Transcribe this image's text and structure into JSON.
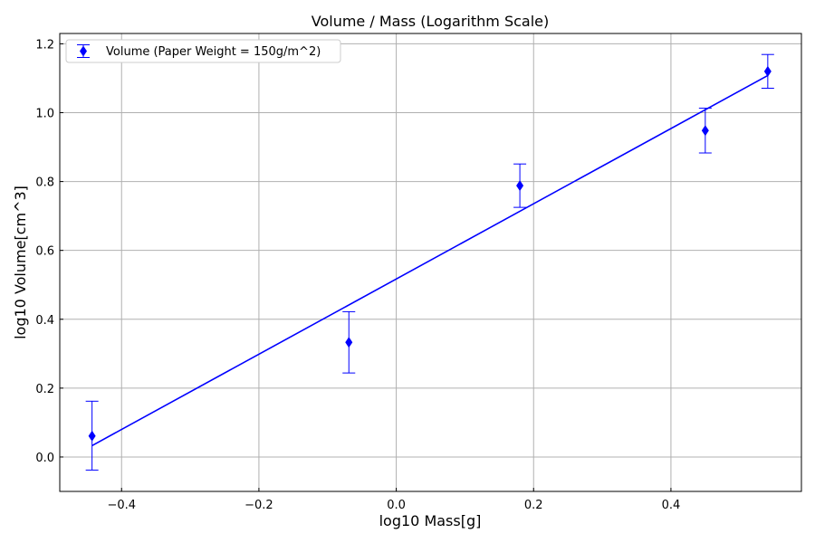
{
  "chart_data": {
    "type": "scatter",
    "title": "Volume / Mass (Logarithm Scale)",
    "xlabel": "log10 Mass[g]",
    "ylabel": "log10 Volume[cm^3]",
    "xlim": [
      -0.49,
      0.59
    ],
    "ylim": [
      -0.1,
      1.23
    ],
    "xticks": [
      -0.4,
      -0.2,
      0.0,
      0.2,
      0.4
    ],
    "yticks": [
      0.0,
      0.2,
      0.4,
      0.6,
      0.8,
      1.0,
      1.2
    ],
    "xtick_labels": [
      "−0.4",
      "−0.2",
      "0.0",
      "0.2",
      "0.4"
    ],
    "ytick_labels": [
      "0.0",
      "0.2",
      "0.4",
      "0.6",
      "0.8",
      "1.0",
      "1.2"
    ],
    "grid": true,
    "legend_position": "top-left",
    "series": [
      {
        "name": "Volume (Paper Weight = 150g/m^2)",
        "color": "#0000ff",
        "marker": "diamond",
        "x": [
          -0.443,
          -0.069,
          0.18,
          0.45,
          0.541
        ],
        "y": [
          0.061,
          0.333,
          0.788,
          0.948,
          1.12
        ],
        "yerr_low": [
          0.099,
          0.089,
          0.063,
          0.065,
          0.049
        ],
        "yerr_high": [
          0.101,
          0.089,
          0.063,
          0.065,
          0.049
        ]
      }
    ],
    "fit_line": {
      "color": "#0000ff",
      "x": [
        -0.443,
        0.541
      ],
      "y": [
        0.033,
        1.108
      ]
    }
  }
}
